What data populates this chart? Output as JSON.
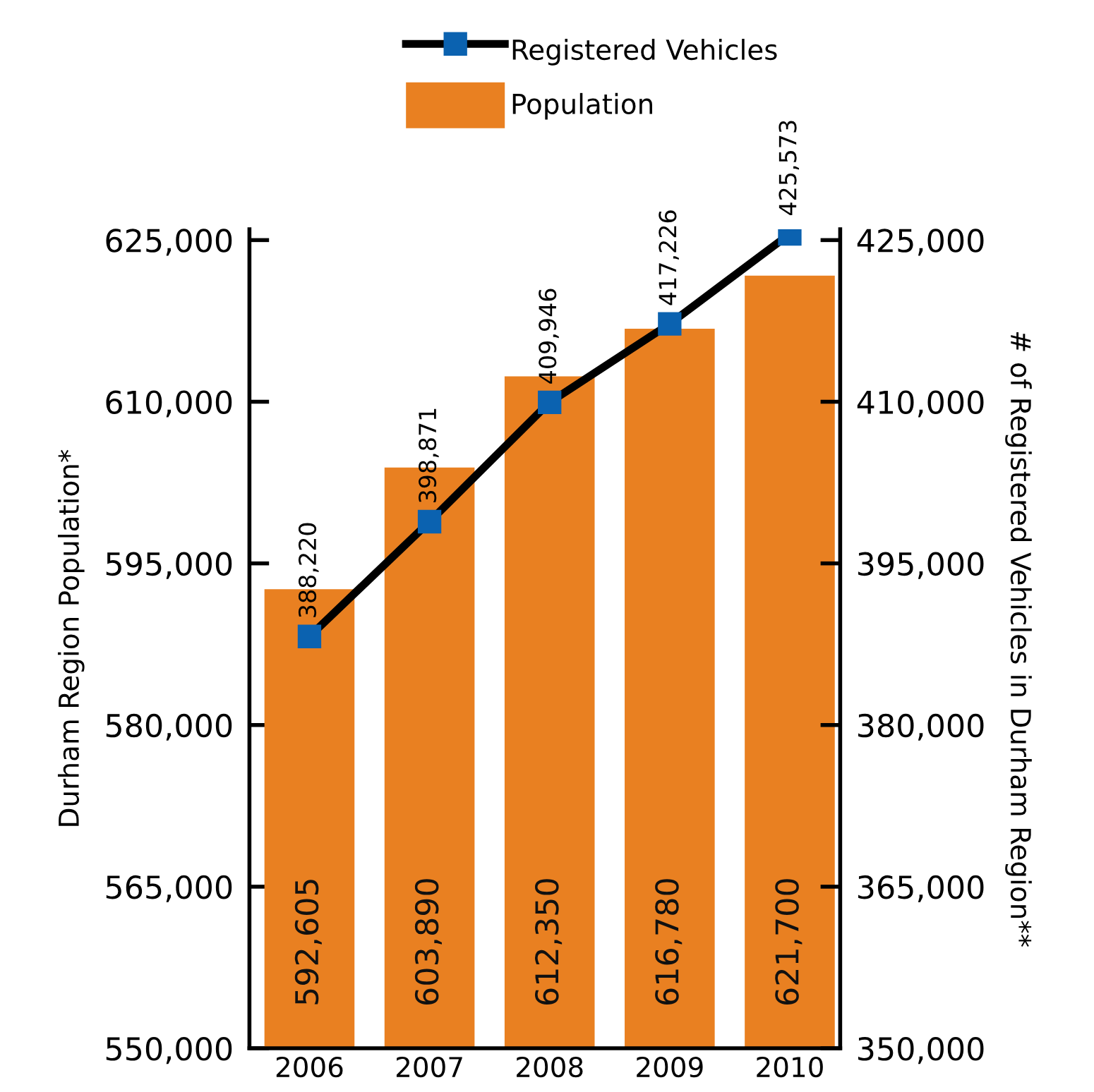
{
  "chart_data": {
    "type": "bar",
    "categories": [
      "2006",
      "2007",
      "2008",
      "2009",
      "2010"
    ],
    "ylabel": "Durham Region Population*",
    "y2label": "# of Registered Vehicles in Durham Region**",
    "ylim": [
      550000,
      626000
    ],
    "yticks": [
      {
        "value": 550000,
        "label": "550,000"
      },
      {
        "value": 565000,
        "label": "565,000"
      },
      {
        "value": 580000,
        "label": "580,000"
      },
      {
        "value": 595000,
        "label": "595,000"
      },
      {
        "value": 610000,
        "label": "610,000"
      },
      {
        "value": 625000,
        "label": "625,000"
      }
    ],
    "y2lim": [
      350000,
      426000
    ],
    "y2ticks": [
      {
        "value": 350000,
        "label": "350,000"
      },
      {
        "value": 365000,
        "label": "365,000"
      },
      {
        "value": 380000,
        "label": "380,000"
      },
      {
        "value": 395000,
        "label": "395,000"
      },
      {
        "value": 410000,
        "label": "410,000"
      },
      {
        "value": 425000,
        "label": "425,000"
      }
    ],
    "legend": "top",
    "series": [
      {
        "name": "Registered Vehicles",
        "type": "line",
        "axis": "y2",
        "color": "#000000",
        "colors": [
          "#0b62b0",
          "#0b62b0",
          "#0b62b0",
          "#0b62b0",
          "#0b62b0"
        ],
        "marker": "square",
        "line_style": "solid",
        "values": [
          388220,
          398871,
          409946,
          417226,
          425573
        ],
        "value_labels": [
          "388,220",
          "398,871",
          "409,946",
          "417,226",
          "425,573"
        ]
      },
      {
        "name": "Population",
        "color": "#e98021",
        "values": [
          592605,
          603890,
          612350,
          616780,
          621700
        ],
        "value_labels": [
          "592,605",
          "603,890",
          "612,350",
          "616,780",
          "621,700"
        ]
      }
    ]
  }
}
